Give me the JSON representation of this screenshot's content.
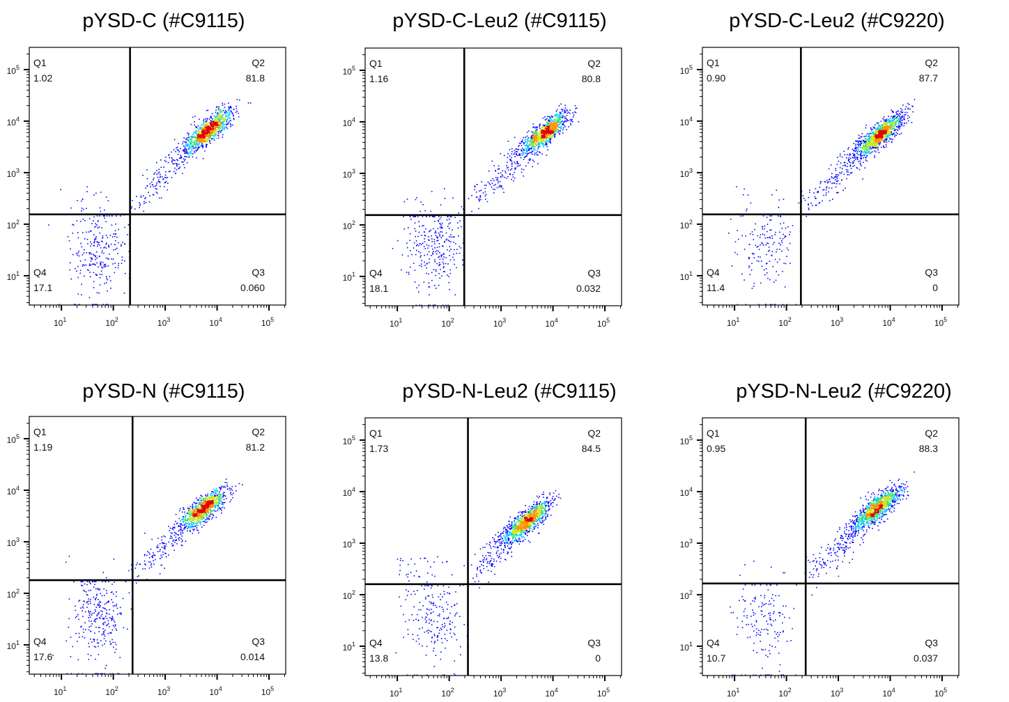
{
  "chart_data": [
    {
      "type": "scatter",
      "title": "pYSD-C (#C9115)",
      "xscale": "log",
      "yscale": "log",
      "xlim": [
        2.4,
        210000
      ],
      "ylim": [
        2.7,
        270000
      ],
      "xticks": [
        "10^1",
        "10^2",
        "10^3",
        "10^4",
        "10^5"
      ],
      "yticks": [
        "10^1",
        "10^2",
        "10^3",
        "10^4",
        "10^5"
      ],
      "gates": {
        "x": 210,
        "y": 155
      },
      "quadrants": [
        {
          "name": "Q1",
          "value": "1.02"
        },
        {
          "name": "Q2",
          "value": "81.8"
        },
        {
          "name": "Q3",
          "value": "0.060"
        },
        {
          "name": "Q4",
          "value": "17.1"
        }
      ],
      "populations": {
        "positive_center": [
          7000,
          7000
        ],
        "negative_center": [
          55,
          30
        ]
      }
    },
    {
      "type": "scatter",
      "title": "pYSD-C-Leu2 (#C9115)",
      "xscale": "log",
      "yscale": "log",
      "xlim": [
        2.4,
        210000
      ],
      "ylim": [
        2.7,
        270000
      ],
      "xticks": [
        "10^1",
        "10^2",
        "10^3",
        "10^4",
        "10^5"
      ],
      "yticks": [
        "10^1",
        "10^2",
        "10^3",
        "10^4",
        "10^5"
      ],
      "gates": {
        "x": 195,
        "y": 155
      },
      "quadrants": [
        {
          "name": "Q1",
          "value": "1.16"
        },
        {
          "name": "Q2",
          "value": "80.8"
        },
        {
          "name": "Q3",
          "value": "0.032"
        },
        {
          "name": "Q4",
          "value": "18.1"
        }
      ],
      "populations": {
        "positive_center": [
          7000,
          6300
        ],
        "negative_center": [
          50,
          40
        ]
      }
    },
    {
      "type": "scatter",
      "title": "pYSD-C-Leu2 (#C9220)",
      "xscale": "log",
      "yscale": "log",
      "xlim": [
        2.4,
        210000
      ],
      "ylim": [
        2.7,
        270000
      ],
      "xticks": [
        "10^1",
        "10^2",
        "10^3",
        "10^4",
        "10^5"
      ],
      "yticks": [
        "10^1",
        "10^2",
        "10^3",
        "10^4",
        "10^5"
      ],
      "gates": {
        "x": 190,
        "y": 155
      },
      "quadrants": [
        {
          "name": "Q1",
          "value": "0.90"
        },
        {
          "name": "Q2",
          "value": "87.7"
        },
        {
          "name": "Q3",
          "value": "0"
        },
        {
          "name": "Q4",
          "value": "11.4"
        }
      ],
      "populations": {
        "positive_center": [
          6300,
          5600
        ],
        "negative_center": [
          40,
          40
        ]
      }
    },
    {
      "type": "scatter",
      "title": "pYSD-N (#C9115)",
      "xscale": "log",
      "yscale": "log",
      "xlim": [
        2.4,
        210000
      ],
      "ylim": [
        2.7,
        270000
      ],
      "xticks": [
        "10^1",
        "10^2",
        "10^3",
        "10^4",
        "10^5"
      ],
      "yticks": [
        "10^1",
        "10^2",
        "10^3",
        "10^4",
        "10^5"
      ],
      "gates": {
        "x": 235,
        "y": 180
      },
      "quadrants": [
        {
          "name": "Q1",
          "value": "1.19"
        },
        {
          "name": "Q2",
          "value": "81.2"
        },
        {
          "name": "Q3",
          "value": "0.014"
        },
        {
          "name": "Q4",
          "value": "17.6"
        }
      ],
      "populations": {
        "positive_center": [
          5600,
          4500
        ],
        "negative_center": [
          55,
          40
        ]
      }
    },
    {
      "type": "scatter",
      "title": "pYSD-N-Leu2 (#C9115)",
      "xscale": "log",
      "yscale": "log",
      "xlim": [
        2.4,
        210000
      ],
      "ylim": [
        2.7,
        270000
      ],
      "xticks": [
        "10^1",
        "10^2",
        "10^3",
        "10^4",
        "10^5"
      ],
      "yticks": [
        "10^1",
        "10^2",
        "10^3",
        "10^4",
        "10^5"
      ],
      "gates": {
        "x": 230,
        "y": 160
      },
      "quadrants": [
        {
          "name": "Q1",
          "value": "1.73"
        },
        {
          "name": "Q2",
          "value": "84.5"
        },
        {
          "name": "Q3",
          "value": "0"
        },
        {
          "name": "Q4",
          "value": "13.8"
        }
      ],
      "populations": {
        "positive_center": [
          3200,
          2800
        ],
        "negative_center": [
          50,
          32
        ]
      }
    },
    {
      "type": "scatter",
      "title": "pYSD-N-Leu2 (#C9220)",
      "xscale": "log",
      "yscale": "log",
      "xlim": [
        2.4,
        210000
      ],
      "ylim": [
        2.7,
        270000
      ],
      "xticks": [
        "10^1",
        "10^2",
        "10^3",
        "10^4",
        "10^5"
      ],
      "yticks": [
        "10^1",
        "10^2",
        "10^3",
        "10^4",
        "10^5"
      ],
      "gates": {
        "x": 235,
        "y": 165
      },
      "quadrants": [
        {
          "name": "Q1",
          "value": "0.95"
        },
        {
          "name": "Q2",
          "value": "88.3"
        },
        {
          "name": "Q3",
          "value": "0.037"
        },
        {
          "name": "Q4",
          "value": "10.7"
        }
      ],
      "populations": {
        "positive_center": [
          5600,
          5000
        ],
        "negative_center": [
          35,
          40
        ]
      }
    }
  ],
  "colors": {
    "density_scale": [
      "#0000ff",
      "#00c8ff",
      "#40e070",
      "#c8e820",
      "#ff9000",
      "#e00000"
    ],
    "gate_line": "#000000",
    "axis": "#000000"
  }
}
